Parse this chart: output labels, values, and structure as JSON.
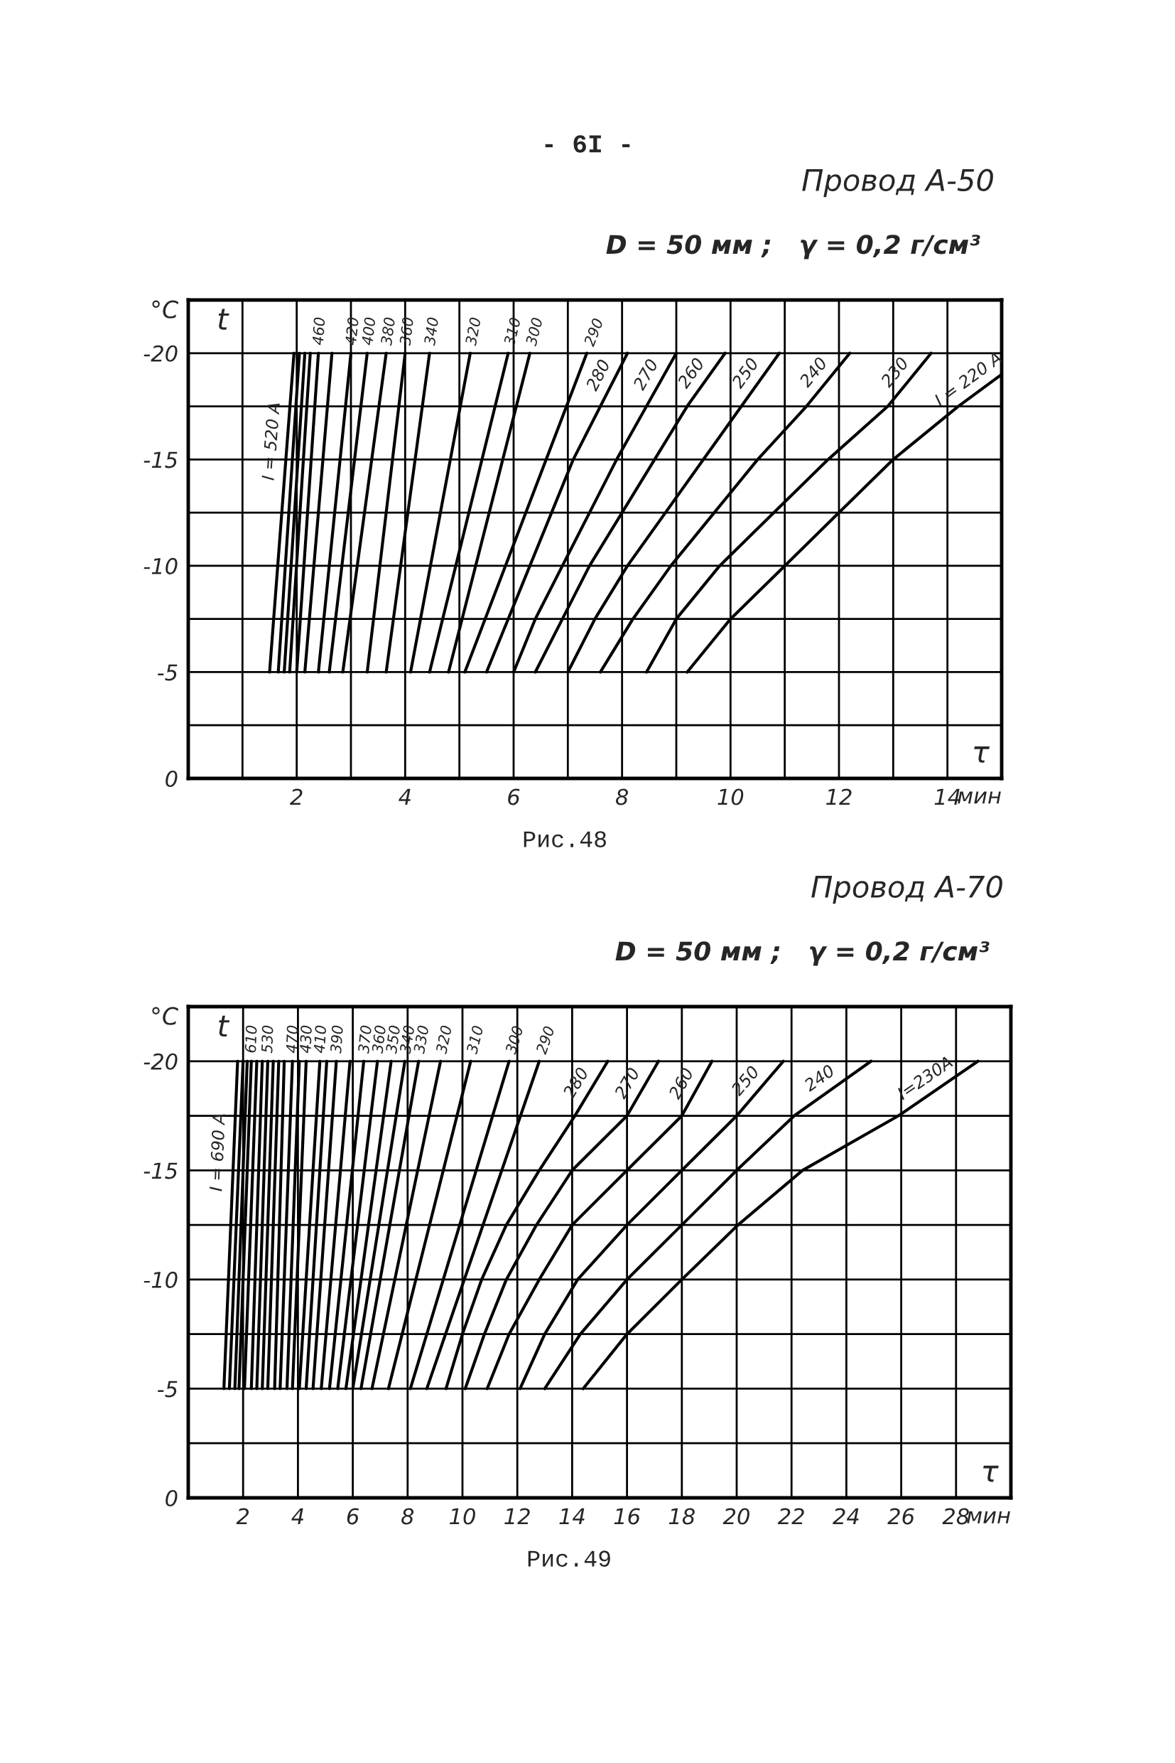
{
  "chart_data": [
    {
      "type": "line",
      "title": "Провод А-50",
      "subtitle": "D = 50 мм ;   γ = 0,2 г/см³",
      "xlabel": "мин",
      "ylabel": "°C",
      "annotations": [
        "- 6I -",
        "t",
        "τ",
        "Рис.48"
      ],
      "xlim": [
        0,
        15
      ],
      "ylim": [
        0,
        -22.5
      ],
      "grid": true,
      "xticks": [
        {
          "value": 1,
          "label": null
        },
        2,
        {
          "value": 3,
          "label": null
        },
        4,
        {
          "value": 5,
          "label": null
        },
        6,
        {
          "value": 7,
          "label": null
        },
        8,
        {
          "value": 9,
          "label": null
        },
        10,
        {
          "value": 11,
          "label": null
        },
        12,
        {
          "value": 13,
          "label": null
        },
        14
      ],
      "yticks": [
        0,
        {
          "value": -2.5,
          "label": null
        },
        -5,
        {
          "value": -7.5,
          "label": null
        },
        -10,
        {
          "value": -12.5,
          "label": null
        },
        -15,
        {
          "value": -17.5,
          "label": null
        },
        -20
      ],
      "series": [
        {
          "name": "I = 520 A",
          "color": "#000000",
          "x": [
            1.5,
            1.95
          ],
          "values": [
            -5,
            -20
          ]
        },
        {
          "color": "#000000",
          "x": [
            1.66,
            2.05
          ],
          "values": [
            -5,
            -20
          ]
        },
        {
          "color": "#000000",
          "x": [
            1.77,
            2.15
          ],
          "values": [
            -5,
            -20
          ]
        },
        {
          "color": "#000000",
          "x": [
            1.87,
            2.25
          ],
          "values": [
            -5,
            -20
          ]
        },
        {
          "name": "460",
          "color": "#000000",
          "x": [
            2.0,
            2.4
          ],
          "values": [
            -5,
            -20
          ]
        },
        {
          "color": "#000000",
          "x": [
            2.15,
            2.65
          ],
          "values": [
            -5,
            -20
          ]
        },
        {
          "name": "420",
          "color": "#000000",
          "x": [
            2.4,
            3.0
          ],
          "values": [
            -5,
            -20
          ]
        },
        {
          "name": "400",
          "color": "#000000",
          "x": [
            2.6,
            3.3
          ],
          "values": [
            -5,
            -20
          ]
        },
        {
          "name": "380",
          "color": "#000000",
          "x": [
            2.85,
            3.65
          ],
          "values": [
            -5,
            -20
          ]
        },
        {
          "name": "360",
          "color": "#000000",
          "x": [
            3.3,
            4.0
          ],
          "values": [
            -5,
            -20
          ]
        },
        {
          "name": "340",
          "color": "#000000",
          "x": [
            3.65,
            4.45
          ],
          "values": [
            -5,
            -20
          ]
        },
        {
          "name": "320",
          "color": "#000000",
          "x": [
            4.1,
            5.2
          ],
          "values": [
            -5,
            -20
          ]
        },
        {
          "name": "310",
          "color": "#000000",
          "x": [
            4.45,
            5.9
          ],
          "values": [
            -5,
            -20
          ]
        },
        {
          "name": "300",
          "color": "#000000",
          "x": [
            4.8,
            6.3
          ],
          "values": [
            -5,
            -20
          ]
        },
        {
          "name": "290",
          "color": "#000000",
          "x": [
            5.1,
            7.35
          ],
          "values": [
            -5,
            -20
          ]
        },
        {
          "name": "280",
          "color": "#000000",
          "x": [
            5.5,
            5.9,
            6.3,
            6.7,
            7.1,
            7.6,
            8.1
          ],
          "values": [
            -5,
            -7.5,
            -10,
            -12.5,
            -15,
            -17.5,
            -20
          ]
        },
        {
          "name": "270",
          "color": "#000000",
          "x": [
            6.0,
            6.4,
            6.9,
            7.4,
            7.9,
            8.45,
            9.0
          ],
          "values": [
            -5,
            -7.5,
            -10,
            -12.5,
            -15,
            -17.5,
            -20
          ]
        },
        {
          "name": "260",
          "color": "#000000",
          "x": [
            6.4,
            6.9,
            7.4,
            8.0,
            8.6,
            9.2,
            9.9
          ],
          "values": [
            -5,
            -7.5,
            -10,
            -12.5,
            -15,
            -17.5,
            -20
          ]
        },
        {
          "name": "250",
          "color": "#000000",
          "x": [
            7.0,
            7.5,
            8.1,
            8.8,
            9.5,
            10.2,
            10.9
          ],
          "values": [
            -5,
            -7.5,
            -10,
            -12.5,
            -15,
            -17.5,
            -20
          ]
        },
        {
          "name": "240",
          "color": "#000000",
          "x": [
            7.6,
            8.2,
            8.9,
            9.7,
            10.5,
            11.4,
            12.2
          ],
          "values": [
            -5,
            -7.5,
            -10,
            -12.5,
            -15,
            -17.5,
            -20
          ]
        },
        {
          "name": "230",
          "color": "#000000",
          "x": [
            8.45,
            9.0,
            9.8,
            10.8,
            11.8,
            12.9,
            13.7
          ],
          "values": [
            -5,
            -7.5,
            -10,
            -12.5,
            -15,
            -17.5,
            -20
          ]
        },
        {
          "name": "I = 220 A",
          "color": "#000000",
          "x": [
            9.2,
            10.0,
            11.0,
            12.0,
            13.0,
            14.2,
            15
          ],
          "values": [
            -5,
            -7.5,
            -10,
            -12.5,
            -15,
            -17.5,
            -19
          ]
        }
      ]
    },
    {
      "type": "line",
      "title": "Провод А-70",
      "subtitle": "D = 50 мм ;   γ = 0,2 г/см³",
      "xlabel": "мин",
      "ylabel": "°C",
      "annotations": [
        "t",
        "τ",
        "Рис.49"
      ],
      "xlim": [
        0,
        30
      ],
      "ylim": [
        0,
        -22.5
      ],
      "grid": true,
      "xticks": [
        2,
        4,
        6,
        8,
        10,
        12,
        14,
        16,
        18,
        20,
        22,
        24,
        26,
        28
      ],
      "yticks": [
        0,
        {
          "value": -2.5,
          "label": null
        },
        -5,
        {
          "value": -7.5,
          "label": null
        },
        -10,
        {
          "value": -12.5,
          "label": null
        },
        -15,
        {
          "value": -17.5,
          "label": null
        },
        -20
      ],
      "series": [
        {
          "name": "I = 690 A",
          "color": "#000000",
          "x": [
            1.3,
            1.8
          ],
          "values": [
            -5,
            -20
          ]
        },
        {
          "color": "#000000",
          "x": [
            1.5,
            2.0
          ],
          "values": [
            -5,
            -20
          ]
        },
        {
          "color": "#000000",
          "x": [
            1.7,
            2.15
          ],
          "values": [
            -5,
            -20
          ]
        },
        {
          "name": "610",
          "color": "#000000",
          "x": [
            1.85,
            2.3
          ],
          "values": [
            -5,
            -20
          ]
        },
        {
          "color": "#000000",
          "x": [
            2.05,
            2.5
          ],
          "values": [
            -5,
            -20
          ]
        },
        {
          "color": "#000000",
          "x": [
            2.3,
            2.7
          ],
          "values": [
            -5,
            -20
          ]
        },
        {
          "name": "530",
          "color": "#000000",
          "x": [
            2.5,
            2.9
          ],
          "values": [
            -5,
            -20
          ]
        },
        {
          "color": "#000000",
          "x": [
            2.7,
            3.1
          ],
          "values": [
            -5,
            -20
          ]
        },
        {
          "color": "#000000",
          "x": [
            2.9,
            3.3
          ],
          "values": [
            -5,
            -20
          ]
        },
        {
          "color": "#000000",
          "x": [
            3.15,
            3.5
          ],
          "values": [
            -5,
            -20
          ]
        },
        {
          "name": "470",
          "color": "#000000",
          "x": [
            3.35,
            3.8
          ],
          "values": [
            -5,
            -20
          ]
        },
        {
          "color": "#000000",
          "x": [
            3.6,
            4.05
          ],
          "values": [
            -5,
            -20
          ]
        },
        {
          "name": "430",
          "color": "#000000",
          "x": [
            3.8,
            4.3
          ],
          "values": [
            -5,
            -20
          ]
        },
        {
          "name": "410",
          "color": "#000000",
          "x": [
            4.05,
            4.8
          ],
          "values": [
            -5,
            -20
          ]
        },
        {
          "color": "#000000",
          "x": [
            4.3,
            5.05
          ],
          "values": [
            -5,
            -20
          ]
        },
        {
          "name": "390",
          "color": "#000000",
          "x": [
            4.55,
            5.4
          ],
          "values": [
            -5,
            -20
          ]
        },
        {
          "color": "#000000",
          "x": [
            4.85,
            5.9
          ],
          "values": [
            -5,
            -20
          ]
        },
        {
          "name": "370",
          "color": "#000000",
          "x": [
            5.15,
            6.4
          ],
          "values": [
            -5,
            -20
          ]
        },
        {
          "name": "360",
          "color": "#000000",
          "x": [
            5.45,
            6.9
          ],
          "values": [
            -5,
            -20
          ]
        },
        {
          "name": "350",
          "color": "#000000",
          "x": [
            5.75,
            7.4
          ],
          "values": [
            -5,
            -20
          ]
        },
        {
          "name": "340",
          "color": "#000000",
          "x": [
            6.0,
            7.9
          ],
          "values": [
            -5,
            -20
          ]
        },
        {
          "name": "330",
          "color": "#000000",
          "x": [
            6.3,
            8.4
          ],
          "values": [
            -5,
            -20
          ]
        },
        {
          "name": "320",
          "color": "#000000",
          "x": [
            6.7,
            9.2
          ],
          "values": [
            -5,
            -20
          ]
        },
        {
          "name": "310",
          "color": "#000000",
          "x": [
            7.3,
            10.3
          ],
          "values": [
            -5,
            -20
          ]
        },
        {
          "name": "300",
          "color": "#000000",
          "x": [
            8.1,
            11.7
          ],
          "values": [
            -5,
            -20
          ]
        },
        {
          "name": "290",
          "color": "#000000",
          "x": [
            8.7,
            12.8
          ],
          "values": [
            -5,
            -20
          ]
        },
        {
          "name": "280",
          "color": "#000000",
          "x": [
            9.4,
            10.0,
            10.7,
            11.6,
            12.8,
            14.1,
            15.3
          ],
          "values": [
            -5,
            -7.5,
            -10,
            -12.5,
            -15,
            -17.5,
            -20
          ]
        },
        {
          "name": "270",
          "color": "#000000",
          "x": [
            10.1,
            10.8,
            11.6,
            12.7,
            14.0,
            16.0,
            17.15
          ],
          "values": [
            -5,
            -7.5,
            -10,
            -12.5,
            -15,
            -17.5,
            -20
          ]
        },
        {
          "name": "260",
          "color": "#000000",
          "x": [
            10.9,
            11.7,
            12.8,
            14.0,
            16.0,
            18.0,
            19.1
          ],
          "values": [
            -5,
            -7.5,
            -10,
            -12.5,
            -15,
            -17.5,
            -20
          ]
        },
        {
          "name": "250",
          "color": "#000000",
          "x": [
            12.1,
            13.0,
            14.2,
            16.0,
            18.0,
            20.0,
            21.7
          ],
          "values": [
            -5,
            -7.5,
            -10,
            -12.5,
            -15,
            -17.5,
            -20
          ]
        },
        {
          "name": "240",
          "color": "#000000",
          "x": [
            13.0,
            14.3,
            16.0,
            18.0,
            20.0,
            22.1,
            24.9
          ],
          "values": [
            -5,
            -7.5,
            -10,
            -12.5,
            -15,
            -17.5,
            -20
          ]
        },
        {
          "name": "I=230A",
          "color": "#000000",
          "x": [
            14.4,
            16.0,
            18.0,
            20.05,
            22.4,
            25.9,
            28.8
          ],
          "values": [
            -5,
            -7.5,
            -10,
            -12.5,
            -15,
            -17.5,
            -20
          ]
        }
      ]
    }
  ]
}
